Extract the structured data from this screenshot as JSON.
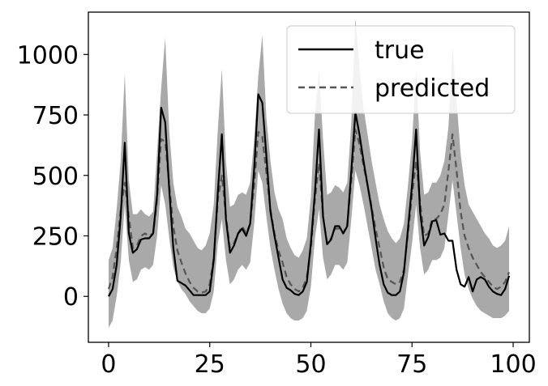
{
  "chart_data": {
    "type": "line",
    "title": "",
    "xlabel": "",
    "ylabel": "",
    "xlim": [
      -5,
      104
    ],
    "ylim": [
      -190,
      1175
    ],
    "xticks": [
      0,
      25,
      50,
      75,
      100
    ],
    "yticks": [
      0,
      250,
      500,
      750,
      1000
    ],
    "grid": false,
    "legend_position": "top-right",
    "colors": {
      "true": "#000000",
      "predicted": "#555555",
      "band": "#a9a9a9"
    },
    "series": [
      {
        "name": "true",
        "style": "solid",
        "points": [
          [
            0,
            0
          ],
          [
            1,
            30
          ],
          [
            2,
            130
          ],
          [
            3,
            330
          ],
          [
            4,
            635
          ],
          [
            5,
            260
          ],
          [
            6,
            180
          ],
          [
            7,
            195
          ],
          [
            8,
            235
          ],
          [
            9,
            240
          ],
          [
            10,
            240
          ],
          [
            11,
            260
          ],
          [
            12,
            420
          ],
          [
            13,
            780
          ],
          [
            14,
            720
          ],
          [
            15,
            440
          ],
          [
            16,
            200
          ],
          [
            17,
            65
          ],
          [
            18,
            55
          ],
          [
            19,
            45
          ],
          [
            20,
            25
          ],
          [
            21,
            5
          ],
          [
            22,
            5
          ],
          [
            23,
            5
          ],
          [
            24,
            5
          ],
          [
            25,
            20
          ],
          [
            26,
            150
          ],
          [
            27,
            430
          ],
          [
            28,
            670
          ],
          [
            29,
            320
          ],
          [
            30,
            180
          ],
          [
            31,
            210
          ],
          [
            32,
            260
          ],
          [
            33,
            280
          ],
          [
            34,
            250
          ],
          [
            35,
            300
          ],
          [
            36,
            530
          ],
          [
            37,
            835
          ],
          [
            38,
            800
          ],
          [
            39,
            580
          ],
          [
            40,
            350
          ],
          [
            41,
            250
          ],
          [
            42,
            160
          ],
          [
            43,
            70
          ],
          [
            44,
            35
          ],
          [
            45,
            25
          ],
          [
            46,
            10
          ],
          [
            47,
            5
          ],
          [
            48,
            20
          ],
          [
            49,
            60
          ],
          [
            50,
            220
          ],
          [
            51,
            430
          ],
          [
            52,
            690
          ],
          [
            53,
            330
          ],
          [
            54,
            215
          ],
          [
            55,
            235
          ],
          [
            56,
            290
          ],
          [
            57,
            290
          ],
          [
            58,
            260
          ],
          [
            59,
            290
          ],
          [
            60,
            520
          ],
          [
            61,
            760
          ],
          [
            62,
            670
          ],
          [
            63,
            560
          ],
          [
            64,
            460
          ],
          [
            65,
            360
          ],
          [
            66,
            240
          ],
          [
            67,
            130
          ],
          [
            68,
            50
          ],
          [
            69,
            15
          ],
          [
            70,
            5
          ],
          [
            71,
            5
          ],
          [
            72,
            20
          ],
          [
            73,
            100
          ],
          [
            74,
            280
          ],
          [
            75,
            460
          ],
          [
            76,
            690
          ],
          [
            77,
            350
          ],
          [
            78,
            210
          ],
          [
            79,
            245
          ],
          [
            80,
            310
          ],
          [
            81,
            315
          ],
          [
            82,
            255
          ],
          [
            83,
            260
          ],
          [
            84,
            230
          ],
          [
            85,
            230
          ],
          [
            86,
            110
          ],
          [
            87,
            50
          ],
          [
            88,
            40
          ],
          [
            89,
            80
          ],
          [
            90,
            20
          ],
          [
            91,
            70
          ],
          [
            92,
            80
          ],
          [
            93,
            70
          ],
          [
            94,
            40
          ],
          [
            95,
            20
          ],
          [
            96,
            10
          ],
          [
            97,
            5
          ],
          [
            98,
            30
          ],
          [
            99,
            85
          ]
        ]
      },
      {
        "name": "predicted",
        "style": "dashed",
        "points": [
          [
            0,
            30
          ],
          [
            1,
            80
          ],
          [
            2,
            200
          ],
          [
            3,
            360
          ],
          [
            4,
            470
          ],
          [
            5,
            330
          ],
          [
            6,
            200
          ],
          [
            7,
            210
          ],
          [
            8,
            250
          ],
          [
            9,
            260
          ],
          [
            10,
            250
          ],
          [
            11,
            260
          ],
          [
            12,
            400
          ],
          [
            13,
            650
          ],
          [
            14,
            640
          ],
          [
            15,
            460
          ],
          [
            16,
            290
          ],
          [
            17,
            190
          ],
          [
            18,
            140
          ],
          [
            19,
            95
          ],
          [
            20,
            60
          ],
          [
            21,
            35
          ],
          [
            22,
            20
          ],
          [
            23,
            15
          ],
          [
            24,
            20
          ],
          [
            25,
            50
          ],
          [
            26,
            160
          ],
          [
            27,
            400
          ],
          [
            28,
            500
          ],
          [
            29,
            330
          ],
          [
            30,
            200
          ],
          [
            31,
            220
          ],
          [
            32,
            260
          ],
          [
            33,
            290
          ],
          [
            34,
            260
          ],
          [
            35,
            300
          ],
          [
            36,
            460
          ],
          [
            37,
            680
          ],
          [
            38,
            660
          ],
          [
            39,
            510
          ],
          [
            40,
            360
          ],
          [
            41,
            260
          ],
          [
            42,
            190
          ],
          [
            43,
            140
          ],
          [
            44,
            80
          ],
          [
            45,
            50
          ],
          [
            46,
            30
          ],
          [
            47,
            20
          ],
          [
            48,
            35
          ],
          [
            49,
            80
          ],
          [
            50,
            200
          ],
          [
            51,
            400
          ],
          [
            52,
            550
          ],
          [
            53,
            330
          ],
          [
            54,
            220
          ],
          [
            55,
            240
          ],
          [
            56,
            280
          ],
          [
            57,
            280
          ],
          [
            58,
            260
          ],
          [
            59,
            300
          ],
          [
            60,
            480
          ],
          [
            61,
            690
          ],
          [
            62,
            630
          ],
          [
            63,
            540
          ],
          [
            64,
            460
          ],
          [
            65,
            370
          ],
          [
            66,
            280
          ],
          [
            67,
            200
          ],
          [
            68,
            120
          ],
          [
            69,
            70
          ],
          [
            70,
            60
          ],
          [
            71,
            50
          ],
          [
            72,
            60
          ],
          [
            73,
            110
          ],
          [
            74,
            260
          ],
          [
            75,
            420
          ],
          [
            76,
            560
          ],
          [
            77,
            390
          ],
          [
            78,
            250
          ],
          [
            79,
            260
          ],
          [
            80,
            320
          ],
          [
            81,
            320
          ],
          [
            82,
            340
          ],
          [
            83,
            380
          ],
          [
            84,
            520
          ],
          [
            85,
            670
          ],
          [
            86,
            520
          ],
          [
            87,
            350
          ],
          [
            88,
            250
          ],
          [
            89,
            200
          ],
          [
            90,
            160
          ],
          [
            91,
            130
          ],
          [
            92,
            100
          ],
          [
            93,
            80
          ],
          [
            94,
            60
          ],
          [
            95,
            40
          ],
          [
            96,
            30
          ],
          [
            97,
            40
          ],
          [
            98,
            60
          ],
          [
            99,
            100
          ]
        ]
      }
    ],
    "band": {
      "upper": [
        150,
        200,
        360,
        560,
        920,
        480,
        340,
        340,
        360,
        340,
        330,
        350,
        600,
        860,
        1070,
        680,
        470,
        370,
        330,
        280,
        260,
        230,
        200,
        190,
        210,
        260,
        380,
        690,
        940,
        560,
        370,
        380,
        420,
        430,
        420,
        470,
        650,
        910,
        1080,
        740,
        560,
        430,
        360,
        320,
        240,
        200,
        170,
        160,
        190,
        240,
        410,
        750,
        940,
        650,
        420,
        430,
        460,
        450,
        430,
        470,
        720,
        1150,
        950,
        780,
        670,
        560,
        470,
        380,
        320,
        270,
        240,
        220,
        240,
        300,
        460,
        640,
        940,
        600,
        420,
        430,
        470,
        470,
        500,
        560,
        700,
        1030,
        810,
        590,
        460,
        380,
        350,
        320,
        290,
        260,
        240,
        210,
        200,
        210,
        230,
        290
      ],
      "lower": [
        -130,
        -100,
        0,
        140,
        380,
        150,
        60,
        70,
        110,
        120,
        110,
        130,
        250,
        460,
        380,
        240,
        120,
        60,
        30,
        10,
        -20,
        -40,
        -60,
        -70,
        -70,
        -50,
        20,
        220,
        320,
        150,
        50,
        70,
        110,
        130,
        110,
        140,
        300,
        520,
        470,
        330,
        200,
        110,
        30,
        -30,
        -70,
        -90,
        -100,
        -100,
        -90,
        -60,
        40,
        240,
        360,
        160,
        70,
        90,
        130,
        130,
        110,
        140,
        320,
        520,
        460,
        380,
        290,
        200,
        110,
        50,
        -20,
        -70,
        -90,
        -100,
        -90,
        -50,
        90,
        220,
        380,
        200,
        90,
        110,
        150,
        150,
        160,
        200,
        340,
        480,
        340,
        200,
        90,
        30,
        -10,
        -40,
        -60,
        -70,
        -80,
        -90,
        -90,
        -90,
        -80,
        -60
      ]
    }
  }
}
